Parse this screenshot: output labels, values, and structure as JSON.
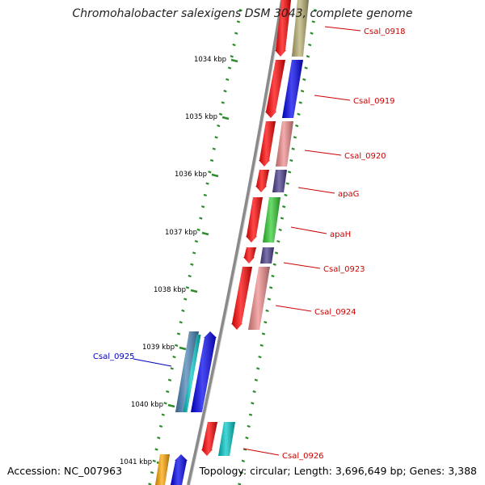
{
  "title": "Chromohalobacter salexigens DSM 3043, complete genome",
  "footer": {
    "accession": "Accession: NC_007963",
    "stats": "Topology: circular; Length: 3,696,649 bp; Genes: 3,388"
  },
  "colors": {
    "backbone": "#8a8a8a",
    "tick_dots": "#2e8b2e",
    "forward_label": "#cc0000",
    "reverse_label": "#0000bb"
  },
  "kbp_labels": [
    "1034 kbp",
    "1035 kbp",
    "1036 kbp",
    "1037 kbp",
    "1038 kbp",
    "1039 kbp",
    "1040 kbp",
    "1041 kbp"
  ],
  "genes": [
    {
      "name": "Csal_0918",
      "strand": "forward",
      "cog_color": "#b8b070"
    },
    {
      "name": "Csal_0919",
      "strand": "forward",
      "cog_color": "#0000ee"
    },
    {
      "name": "Csal_0920",
      "strand": "forward",
      "cog_color": "#f08a8a"
    },
    {
      "name": "apaG",
      "strand": "forward",
      "cog_color": "#483d8b"
    },
    {
      "name": "apaH",
      "strand": "forward",
      "cog_color": "#32cd32"
    },
    {
      "name": "Csal_0923",
      "strand": "forward",
      "cog_color": "#483d8b"
    },
    {
      "name": "Csal_0924",
      "strand": "forward",
      "cog_color": "#f08a8a"
    },
    {
      "name": "Csal_0925",
      "strand": "reverse",
      "cog_color": "#4682b4"
    },
    {
      "name": "Csal_0926",
      "strand": "forward",
      "cog_color": "#00c8c8"
    },
    {
      "name": "",
      "strand": "reverse",
      "cog_color": "#ffa500"
    }
  ]
}
